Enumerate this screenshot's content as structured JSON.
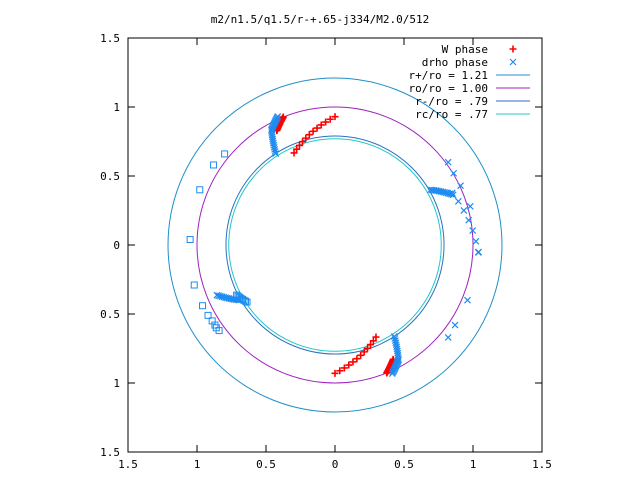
{
  "chart_data": {
    "type": "scatter",
    "title": "m2/n1.5/q1.5/r-+.65-j334/M2.0/512",
    "xlabel": "",
    "ylabel": "",
    "xlim": [
      -1.5,
      1.5
    ],
    "ylim": [
      -1.5,
      1.5
    ],
    "xticks": [
      -1.5,
      -1,
      -0.5,
      0,
      0.5,
      1,
      1.5
    ],
    "yticks": [
      -1.5,
      -1,
      -0.5,
      0,
      0.5,
      1,
      1.5
    ],
    "xtick_labels": [
      "1.5",
      "1",
      "0.5",
      "0",
      "0.5",
      "1",
      "1.5"
    ],
    "ytick_labels": [
      "1.5",
      "1",
      "0.5",
      "0",
      "0.5",
      "1",
      "1.5"
    ],
    "grid": false,
    "legend_position": "top-right",
    "circles": [
      {
        "name": "r+/ro = 1.21",
        "radius": 1.21,
        "color": "#1f8fc8"
      },
      {
        "name": "ro/ro = 1.00",
        "radius": 1.0,
        "color": "#a020c0"
      },
      {
        "name": "r-/ro = .79",
        "radius": 0.79,
        "color": "#2a6fc0"
      },
      {
        "name": "rc/ro = .77",
        "radius": 0.77,
        "color": "#20c8c8"
      }
    ],
    "series": [
      {
        "name": "W phase",
        "marker": "plus",
        "color": "#ff0000",
        "arms": [
          {
            "r_start": 0.73,
            "r_end": 0.93,
            "phi_start": 114,
            "phi_end": 90,
            "n": 12
          },
          {
            "r_start": 0.93,
            "r_end": 1.0,
            "phi_start": 117,
            "phi_end": 112,
            "n": 18
          },
          {
            "r_start": 0.73,
            "r_end": 0.93,
            "phi_start": 294,
            "phi_end": 270,
            "n": 12
          },
          {
            "r_start": 0.93,
            "r_end": 1.0,
            "phi_start": 297,
            "phi_end": 292,
            "n": 18
          }
        ]
      },
      {
        "name": "drho phase",
        "marker": "cross",
        "color": "#1e8cf0",
        "arms": [
          {
            "r_start": 0.8,
            "r_end": 0.93,
            "phi_start": 30,
            "phi_end": 23,
            "n": 14
          },
          {
            "r_start": 0.93,
            "r_end": 1.04,
            "phi_start": 24,
            "phi_end": -3,
            "n": 7
          },
          {
            "r_start": 0.79,
            "r_end": 0.95,
            "phi_start": 123,
            "phi_end": 119,
            "n": 12
          },
          {
            "r_start": 0.95,
            "r_end": 1.02,
            "phi_start": 119,
            "phi_end": 114,
            "n": 12
          },
          {
            "r_start": 0.8,
            "r_end": 0.93,
            "phi_start": 210,
            "phi_end": 203,
            "n": 14
          },
          {
            "r_start": 0.79,
            "r_end": 0.95,
            "phi_start": 303,
            "phi_end": 299,
            "n": 12
          },
          {
            "r_start": 0.95,
            "r_end": 1.02,
            "phi_start": 299,
            "phi_end": 294,
            "n": 12
          }
        ],
        "points": [
          {
            "x": 0.82,
            "y": 0.6
          },
          {
            "x": 0.86,
            "y": 0.52
          },
          {
            "x": 0.91,
            "y": 0.43
          },
          {
            "x": 0.98,
            "y": 0.28
          },
          {
            "x": 1.04,
            "y": -0.05
          },
          {
            "x": 0.96,
            "y": -0.4
          },
          {
            "x": 0.87,
            "y": -0.58
          },
          {
            "x": 0.82,
            "y": -0.67
          }
        ]
      },
      {
        "name": "",
        "marker": "square",
        "color": "#1e8cf0",
        "arms": [
          {
            "r_start": 0.76,
            "r_end": 0.8,
            "phi_start": 213,
            "phi_end": 207,
            "n": 8
          }
        ],
        "points": [
          {
            "x": -0.8,
            "y": 0.66
          },
          {
            "x": -0.88,
            "y": 0.58
          },
          {
            "x": -0.98,
            "y": 0.4
          },
          {
            "x": -1.05,
            "y": 0.04
          },
          {
            "x": -1.02,
            "y": -0.29
          },
          {
            "x": -0.96,
            "y": -0.44
          },
          {
            "x": -0.92,
            "y": -0.51
          },
          {
            "x": -0.89,
            "y": -0.55
          },
          {
            "x": -0.87,
            "y": -0.58
          },
          {
            "x": -0.86,
            "y": -0.6
          },
          {
            "x": -0.84,
            "y": -0.62
          }
        ]
      }
    ]
  }
}
